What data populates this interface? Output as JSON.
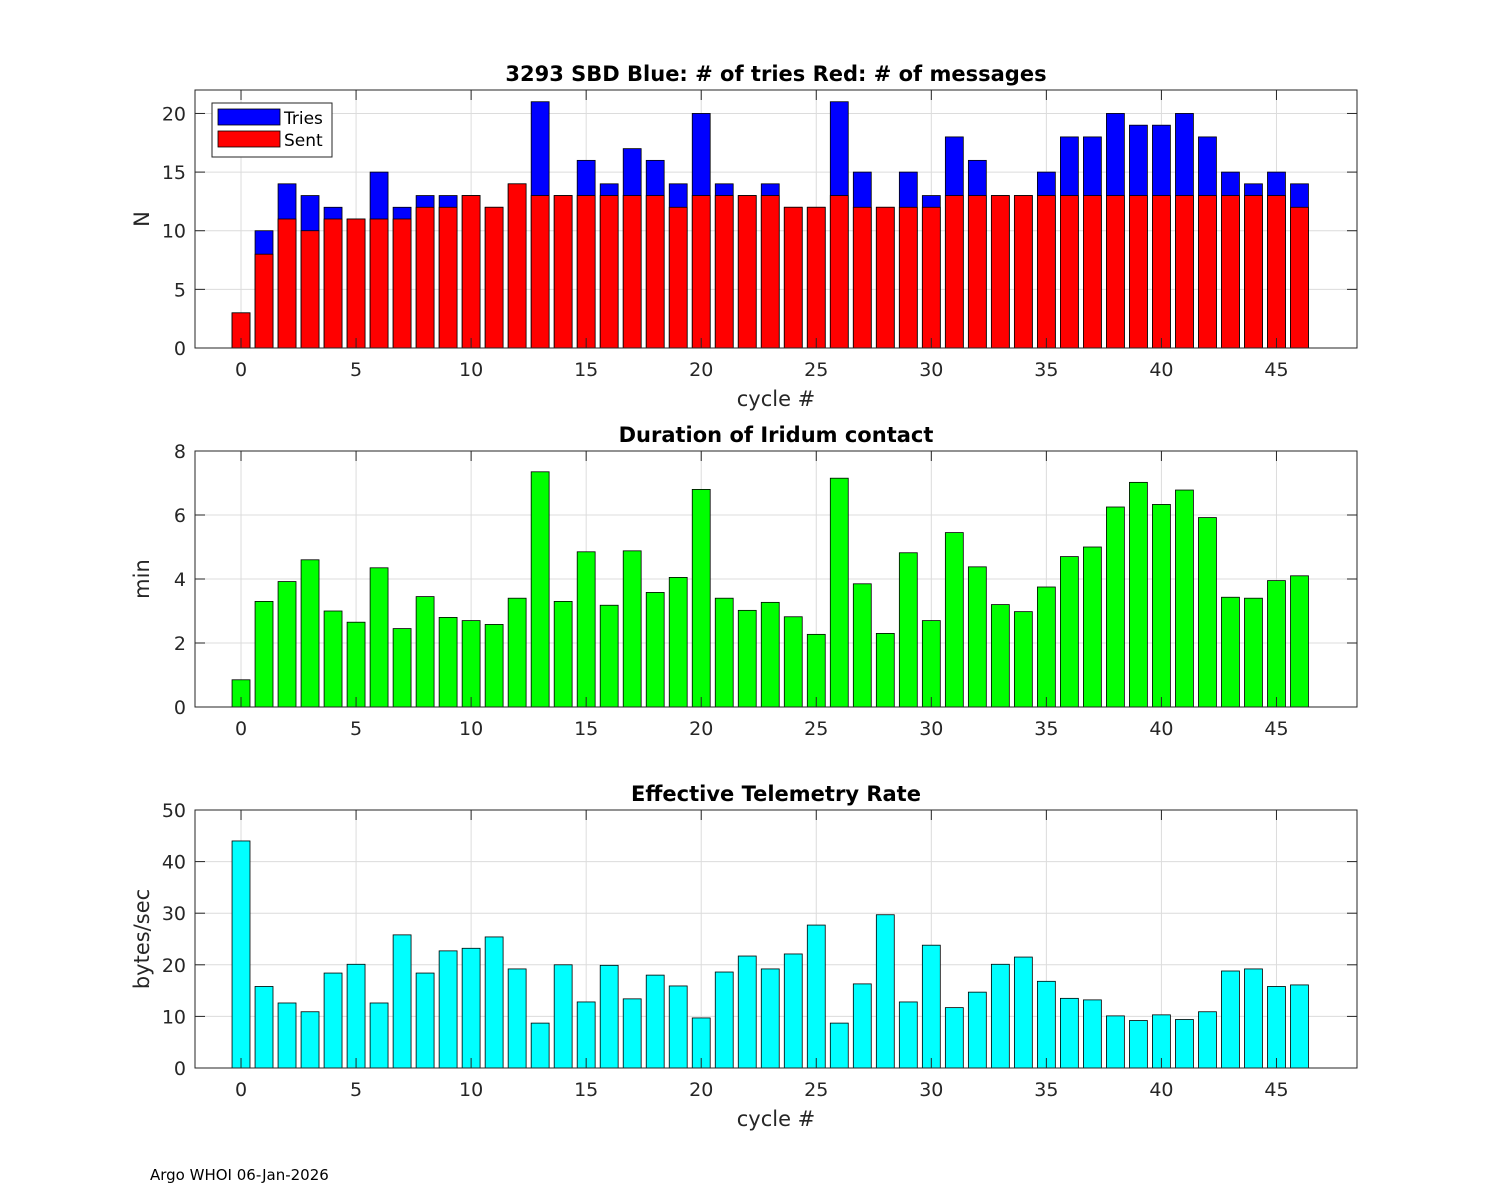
{
  "footer": "Argo WHOI 06-Jan-2026",
  "chart_data": [
    {
      "type": "bar",
      "stacked_overlay": true,
      "title": "3293 SBD  Blue: # of tries   Red: # of messages",
      "xlabel": "cycle #",
      "ylabel": "N",
      "xlim": [
        -2,
        48.5
      ],
      "ylim": [
        0,
        22
      ],
      "xticks": [
        0,
        5,
        10,
        15,
        20,
        25,
        30,
        35,
        40,
        45
      ],
      "yticks": [
        0,
        5,
        10,
        15,
        20
      ],
      "grid": true,
      "legend": {
        "placement": "top-left",
        "entries": [
          "Tries",
          "Sent"
        ]
      },
      "x": [
        0,
        1,
        2,
        3,
        4,
        5,
        6,
        7,
        8,
        9,
        10,
        11,
        12,
        13,
        14,
        15,
        16,
        17,
        18,
        19,
        20,
        21,
        22,
        23,
        24,
        25,
        26,
        27,
        28,
        29,
        30,
        31,
        32,
        33,
        34,
        35,
        36,
        37,
        38,
        39,
        40,
        41,
        42,
        43,
        44,
        45,
        46
      ],
      "series": [
        {
          "name": "Tries",
          "color": "#0000ff",
          "values": [
            3,
            10,
            14,
            13,
            12,
            11,
            15,
            12,
            13,
            13,
            13,
            12,
            14,
            21,
            13,
            16,
            14,
            17,
            16,
            14,
            20,
            14,
            13,
            14,
            12,
            12,
            21,
            15,
            12,
            15,
            13,
            18,
            16,
            13,
            13,
            15,
            18,
            18,
            20,
            19,
            19,
            20,
            18,
            15,
            14,
            15,
            14
          ]
        },
        {
          "name": "Sent",
          "color": "#ff0000",
          "values": [
            3,
            8,
            11,
            10,
            11,
            11,
            11,
            11,
            12,
            12,
            13,
            12,
            14,
            13,
            13,
            13,
            13,
            13,
            13,
            12,
            13,
            13,
            13,
            13,
            12,
            12,
            13,
            12,
            12,
            12,
            12,
            13,
            13,
            13,
            13,
            13,
            13,
            13,
            13,
            13,
            13,
            13,
            13,
            13,
            13,
            13,
            12
          ]
        }
      ]
    },
    {
      "type": "bar",
      "title": "Duration of Iridum contact",
      "xlabel": "",
      "ylabel": "min",
      "xlim": [
        -2,
        48.5
      ],
      "ylim": [
        0,
        8
      ],
      "xticks": [
        0,
        5,
        10,
        15,
        20,
        25,
        30,
        35,
        40,
        45
      ],
      "yticks": [
        0,
        2,
        4,
        6,
        8
      ],
      "grid": true,
      "x": [
        -1,
        0,
        1,
        2,
        3,
        4,
        5,
        6,
        7,
        8,
        9,
        10,
        11,
        12,
        13,
        14,
        15,
        16,
        17,
        18,
        19,
        20,
        21,
        22,
        23,
        24,
        25,
        26,
        27,
        28,
        29,
        30,
        31,
        32,
        33,
        34,
        35,
        36,
        37,
        38,
        39,
        40,
        41,
        42,
        43,
        44,
        45,
        46
      ],
      "series": [
        {
          "name": "duration",
          "color": "#00ff00",
          "values": [
            0,
            0.85,
            3.3,
            3.92,
            4.6,
            3.0,
            2.65,
            4.35,
            2.45,
            3.45,
            2.8,
            2.7,
            2.58,
            3.4,
            7.35,
            3.3,
            4.85,
            3.18,
            4.88,
            3.58,
            4.05,
            6.8,
            3.4,
            3.02,
            3.27,
            2.82,
            2.27,
            7.15,
            3.85,
            2.3,
            4.82,
            2.7,
            5.45,
            4.38,
            3.2,
            2.98,
            3.75,
            4.7,
            5.0,
            6.25,
            7.02,
            6.33,
            6.78,
            5.92,
            3.43,
            3.4,
            3.95,
            4.1
          ]
        }
      ]
    },
    {
      "type": "bar",
      "title": "Effective Telemetry Rate",
      "xlabel": "cycle #",
      "ylabel": "bytes/sec",
      "xlim": [
        -2,
        48.5
      ],
      "ylim": [
        0,
        50
      ],
      "xticks": [
        0,
        5,
        10,
        15,
        20,
        25,
        30,
        35,
        40,
        45
      ],
      "yticks": [
        0,
        10,
        20,
        30,
        40,
        50
      ],
      "grid": true,
      "x": [
        0,
        1,
        2,
        3,
        4,
        5,
        6,
        7,
        8,
        9,
        10,
        11,
        12,
        13,
        14,
        15,
        16,
        17,
        18,
        19,
        20,
        21,
        22,
        23,
        24,
        25,
        26,
        27,
        28,
        29,
        30,
        31,
        32,
        33,
        34,
        35,
        36,
        37,
        38,
        39,
        40,
        41,
        42,
        43,
        44,
        45,
        46
      ],
      "series": [
        {
          "name": "rate",
          "color": "#00ffff",
          "values": [
            44,
            15.8,
            12.6,
            10.9,
            18.4,
            20.1,
            12.6,
            25.8,
            18.4,
            22.7,
            23.2,
            25.4,
            19.2,
            8.7,
            20.0,
            12.8,
            19.9,
            13.4,
            18.0,
            15.9,
            9.7,
            18.6,
            21.7,
            19.2,
            22.1,
            27.7,
            8.7,
            16.3,
            29.7,
            12.8,
            23.8,
            11.7,
            14.7,
            20.1,
            21.5,
            16.8,
            13.5,
            13.2,
            10.1,
            9.2,
            10.3,
            9.4,
            10.9,
            18.8,
            19.2,
            15.8,
            16.1
          ]
        }
      ]
    }
  ]
}
